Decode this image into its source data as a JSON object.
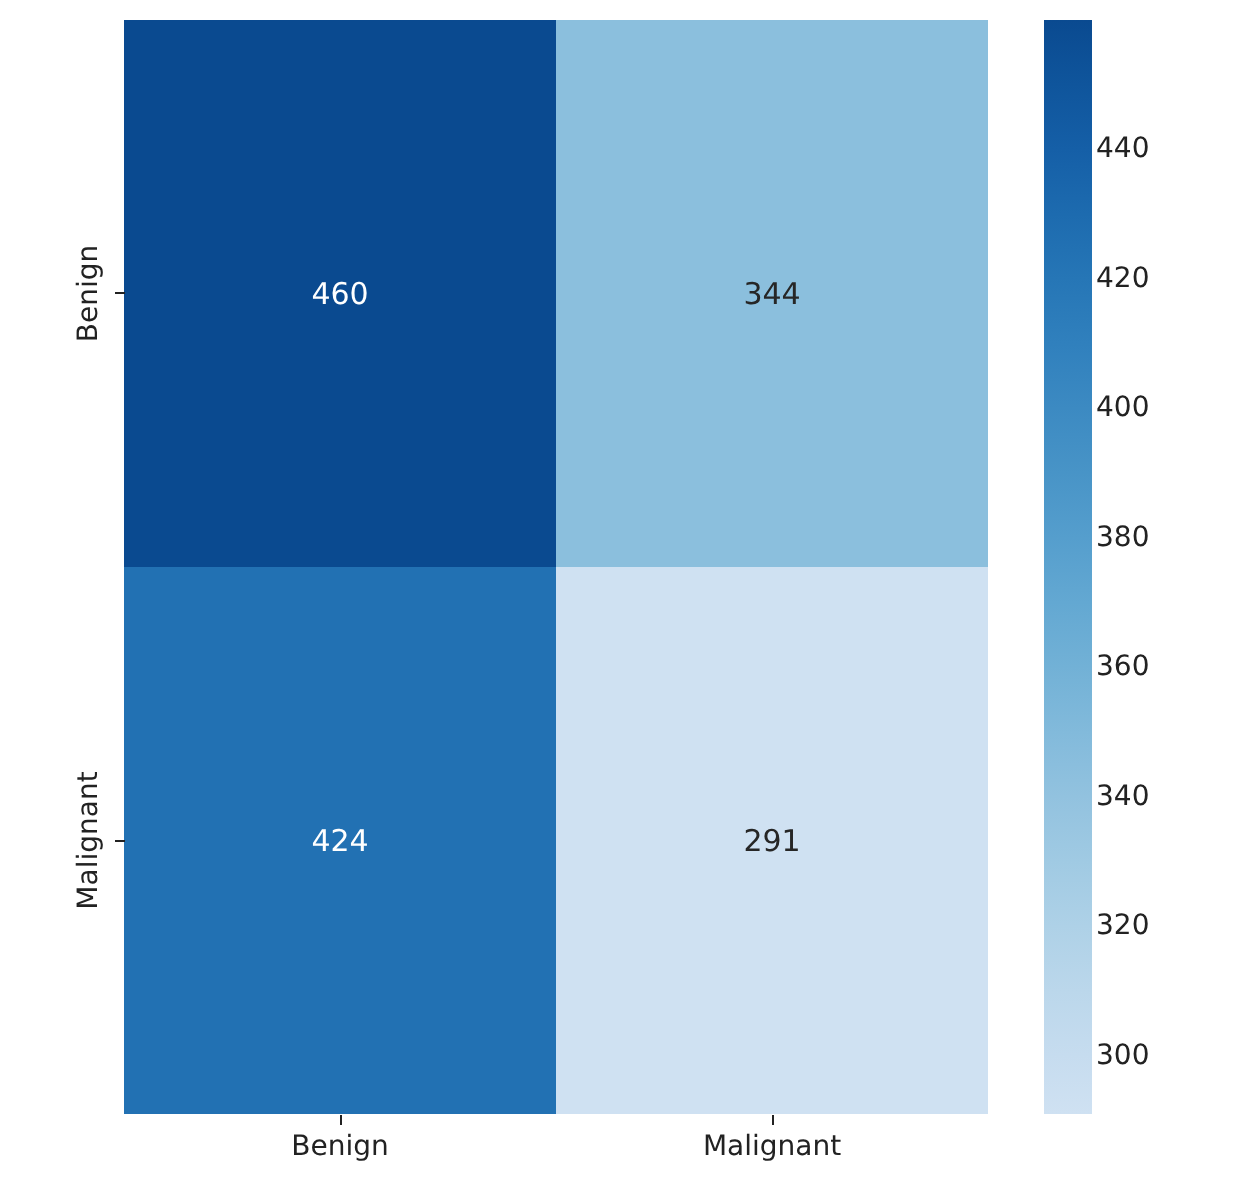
{
  "chart_data": {
    "type": "heatmap",
    "categories": [
      "Benign",
      "Malignant"
    ],
    "y_categories": [
      "Benign",
      "Malignant"
    ],
    "cells": [
      [
        460,
        344
      ],
      [
        424,
        291
      ]
    ],
    "clim": [
      291,
      460
    ],
    "cticks": [
      300,
      320,
      340,
      360,
      380,
      400,
      420,
      440
    ],
    "data_labels": true
  }
}
